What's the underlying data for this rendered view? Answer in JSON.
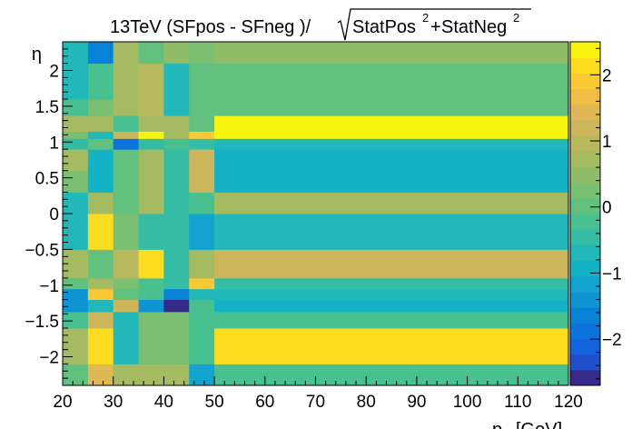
{
  "chart_data": {
    "type": "heatmap",
    "title": {
      "main": "13TeV (SFpos - SFneg )/",
      "radical_a": "StatPos",
      "exp_a": "2",
      "plus": "+",
      "radical_b": "StatNeg",
      "exp_b": "2"
    },
    "xlabel": "p_T [GeV]",
    "xlabel_main": "p",
    "xlabel_sub": "T",
    "xlabel_unit": "[GeV]",
    "ylabel": "η",
    "xlim": [
      20,
      120
    ],
    "ylim": [
      -2.4,
      2.4
    ],
    "zlim": [
      -2.7,
      2.5
    ],
    "x_ticks": [
      "20",
      "30",
      "40",
      "50",
      "60",
      "70",
      "80",
      "90",
      "100",
      "110",
      "120"
    ],
    "y_ticks": [
      "−2",
      "−1.5",
      "−1",
      "−0.5",
      "0",
      "0.5",
      "1",
      "1.5",
      "2"
    ],
    "z_ticks": [
      "−2",
      "−1",
      "0",
      "1",
      "2"
    ],
    "x_edges": [
      20,
      25,
      30,
      35,
      40,
      45,
      50,
      120
    ],
    "eta_edges": [
      -2.4,
      -2.1,
      -1.6,
      -1.37,
      -1.2,
      -1.05,
      -0.9,
      -0.5,
      -0.3,
      0.0,
      0.3,
      0.6,
      0.9,
      1.05,
      1.15,
      1.37,
      1.6,
      2.1,
      2.4
    ],
    "values": [
      [
        0.1,
        1.4,
        0.7,
        0.7,
        0.7,
        -1.1,
        -0.3
      ],
      [
        0.7,
        2.1,
        -0.7,
        0.3,
        0.3,
        -0.2,
        2.1
      ],
      [
        -0.2,
        1.3,
        -0.7,
        0.3,
        0.3,
        -0.3,
        -0.3
      ],
      [
        -1.5,
        -0.7,
        1.3,
        -1.5,
        -2.6,
        -0.3,
        -1.0
      ],
      [
        -1.3,
        2.0,
        0.0,
        -0.3,
        -1.6,
        -0.7,
        -0.7
      ],
      [
        0.1,
        0.8,
        0.3,
        -0.2,
        -0.5,
        2.0,
        -0.4
      ],
      [
        0.8,
        0.0,
        1.0,
        2.1,
        -0.5,
        0.8,
        1.3
      ],
      [
        -0.7,
        2.1,
        0.3,
        -0.5,
        -0.5,
        -1.2,
        -0.6
      ],
      [
        -0.7,
        2.1,
        0.3,
        -0.5,
        -0.5,
        -1.2,
        -0.6
      ],
      [
        -0.6,
        0.8,
        0.1,
        0.8,
        -0.4,
        -0.3,
        0.8
      ],
      [
        0.3,
        -0.9,
        0.1,
        0.8,
        -0.4,
        1.3,
        -0.9
      ],
      [
        0.8,
        -0.9,
        0.1,
        0.8,
        -0.4,
        1.3,
        -0.9
      ],
      [
        -0.5,
        0.0,
        -1.8,
        -0.5,
        -0.3,
        -0.4,
        -0.8
      ],
      [
        0.2,
        -0.8,
        1.1,
        2.5,
        0.7,
        1.8,
        2.4
      ],
      [
        0.7,
        0.7,
        -0.3,
        0.7,
        0.7,
        -0.1,
        2.4
      ],
      [
        -0.3,
        0.2,
        0.7,
        1.0,
        -0.7,
        0.1,
        0.1
      ],
      [
        -0.6,
        -0.3,
        0.7,
        1.0,
        -0.7,
        0.1,
        0.1
      ],
      [
        -0.8,
        -1.6,
        0.8,
        -0.1,
        0.6,
        0.3,
        0.6
      ]
    ],
    "palette": [
      "#352a87",
      "#2050c9",
      "#1463dc",
      "#0c72dd",
      "#0882d6",
      "#0e95d1",
      "#13a3cf",
      "#13b2c6",
      "#22b7b8",
      "#34bca5",
      "#48c090",
      "#62c17e",
      "#7abf72",
      "#91bd69",
      "#a5bb62",
      "#b8b95d",
      "#ccb55b",
      "#dfb755",
      "#f0bd46",
      "#f8c933",
      "#fbdc21",
      "#f9f40f"
    ]
  }
}
